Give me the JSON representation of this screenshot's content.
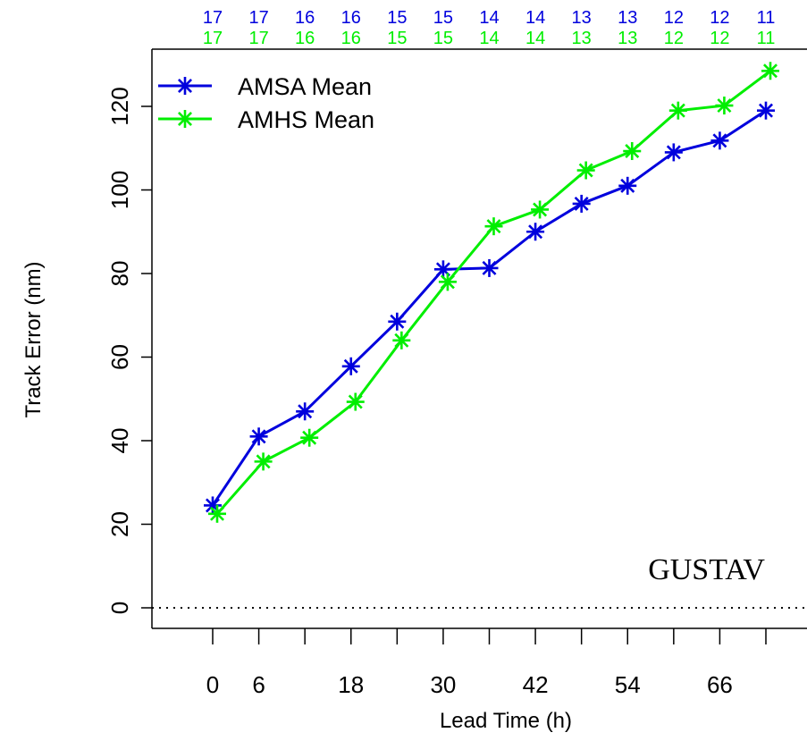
{
  "chart_data": {
    "type": "line",
    "xlabel": "Lead Time (h)",
    "ylabel": "Track Error (nm)",
    "x_tick_labels": [
      "0",
      "6",
      "18",
      "30",
      "42",
      "54",
      "66"
    ],
    "x_tick_values": [
      0,
      6,
      18,
      30,
      42,
      54,
      66
    ],
    "y_tick_labels": [
      "0",
      "20",
      "40",
      "60",
      "80",
      "100",
      "120"
    ],
    "y_tick_values": [
      0,
      20,
      40,
      60,
      80,
      100,
      120
    ],
    "x_axis_ticks": [
      0,
      6,
      12,
      18,
      24,
      30,
      36,
      42,
      48,
      54,
      60,
      66,
      72
    ],
    "xlim": [
      -8,
      75
    ],
    "ylim": [
      -5,
      133
    ],
    "reference_line": {
      "y": 0,
      "style": "dotted"
    },
    "annotation": "GUSTAV",
    "legend_position": "top-left",
    "series": [
      {
        "name": "AMSA Mean",
        "color": "#0000dd",
        "x": [
          0,
          6,
          12,
          18,
          24,
          30,
          36,
          42,
          48,
          54,
          60,
          66,
          72
        ],
        "values": [
          24.5,
          41,
          47,
          57.8,
          68.5,
          81,
          81.3,
          90,
          96.7,
          101,
          109,
          111.8,
          119
        ],
        "counts": [
          "17",
          "17",
          "16",
          "16",
          "15",
          "15",
          "14",
          "14",
          "13",
          "13",
          "12",
          "12",
          "11"
        ]
      },
      {
        "name": "AMHS Mean",
        "color": "#00ee00",
        "x": [
          0,
          6,
          12,
          18,
          24,
          30,
          36,
          42,
          48,
          54,
          60,
          66,
          72
        ],
        "values": [
          22.5,
          35,
          40.7,
          49.3,
          64,
          78,
          91.3,
          95.3,
          104.7,
          109.3,
          119,
          120.2,
          128.5
        ],
        "counts": [
          "17",
          "17",
          "16",
          "16",
          "15",
          "15",
          "14",
          "14",
          "13",
          "13",
          "12",
          "12",
          "11"
        ]
      }
    ]
  }
}
